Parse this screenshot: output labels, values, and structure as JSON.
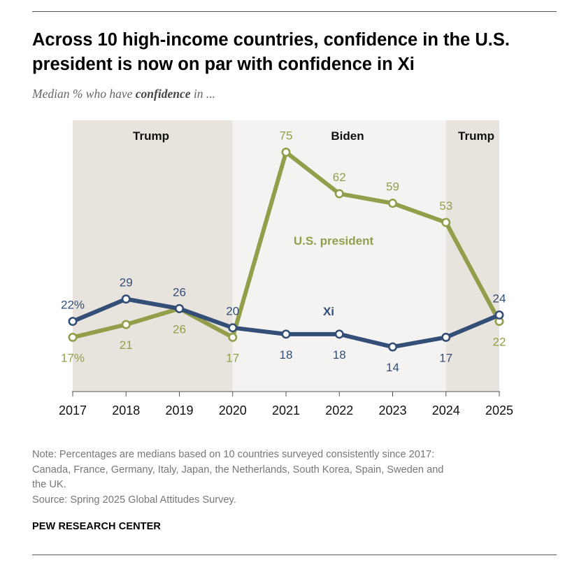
{
  "header": {
    "title": "Across 10 high-income countries, confidence in the U.S. president is now on par with confidence in Xi",
    "subtitle_before": "Median % who have ",
    "subtitle_emphasis": "confidence",
    "subtitle_after": " in ..."
  },
  "chart_data": {
    "type": "line",
    "x": [
      2017,
      2018,
      2019,
      2020,
      2021,
      2022,
      2023,
      2024,
      2025
    ],
    "x_tick_labels": [
      "2017",
      "2018",
      "2019",
      "2020",
      "2021",
      "2022",
      "2023",
      "2024",
      "2025"
    ],
    "ylim": [
      0,
      85
    ],
    "grid": false,
    "periods": [
      {
        "label": "Trump",
        "start": 2017,
        "end": 2020,
        "shade": "#e8e3dc"
      },
      {
        "label": "Biden",
        "start": 2020,
        "end": 2024,
        "shade": "#f4f3f1"
      },
      {
        "label": "Trump",
        "start": 2024,
        "end": 2025,
        "shade": "#e8e3dc"
      }
    ],
    "series": [
      {
        "name": "Xi",
        "color": "#334f78",
        "values": [
          22,
          29,
          26,
          20,
          18,
          18,
          14,
          17,
          24
        ],
        "labels": [
          "22%",
          "29",
          "26",
          "20",
          "18",
          "18",
          "14",
          "17",
          "24"
        ],
        "label_positions": [
          "above",
          "above",
          "above",
          "above",
          "below",
          "below",
          "below",
          "below",
          "above"
        ]
      },
      {
        "name": "U.S. president",
        "color": "#929e4a",
        "values": [
          17,
          21,
          26,
          17,
          75,
          62,
          59,
          53,
          22
        ],
        "labels": [
          "17%",
          "21",
          "26",
          "17",
          "75",
          "62",
          "59",
          "53",
          "22"
        ],
        "label_positions": [
          "below",
          "below",
          "below",
          "below",
          "above",
          "above",
          "above",
          "above",
          "below"
        ]
      }
    ]
  },
  "footer": {
    "note_line_1": "Note: Percentages are medians based on 10 countries surveyed consistently since 2017:",
    "note_line_2": "Canada, France, Germany, Italy, Japan, the Netherlands, South Korea, Spain, Sweden and",
    "note_line_3": "the UK.",
    "source": "Source: Spring 2025 Global Attitudes Survey.",
    "brand": "PEW RESEARCH CENTER"
  }
}
